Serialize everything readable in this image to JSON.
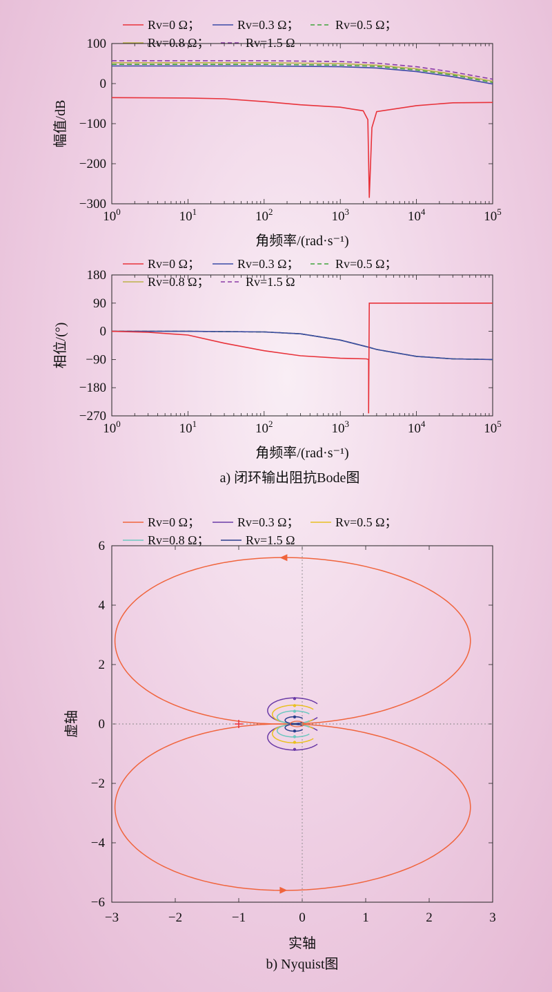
{
  "colors": {
    "rv0": "#e8323a",
    "rv03": "#3a4aa6",
    "rv05": "#3fa33a",
    "rv08": "#bdb24a",
    "rv15": "#8a3aa6",
    "nq0": "#f0643c",
    "nq03": "#6a3aa6",
    "nq05": "#e8c020",
    "nq08": "#6cc8c0",
    "nq15": "#283c8c"
  },
  "captions": {
    "a": "a) 闭环输出阻抗Bode图",
    "b": "b) Nyquist图"
  },
  "chart_data": [
    {
      "type": "line",
      "id": "magnitude",
      "xscale": "log",
      "xlim": [
        1,
        100000
      ],
      "ylim": [
        -300,
        100
      ],
      "xlabel": "角频率/(rad·s⁻¹)",
      "ylabel": "幅值/dB",
      "xticks": [
        1,
        10,
        100,
        1000,
        10000,
        100000
      ],
      "yticks": [
        100,
        0,
        -100,
        -200,
        -300
      ],
      "ytick_labels": [
        "100",
        "0",
        "−100",
        "−200",
        "−300"
      ],
      "legend": {
        "placement": "top",
        "entries": [
          "Rv=0 Ω；",
          "Rv=0.3 Ω；",
          "Rv=0.5 Ω；",
          "Rv=0.8 Ω；",
          "Rv=1.5 Ω"
        ]
      },
      "series": [
        {
          "name": "Rv=0 Ω",
          "x": [
            1,
            10,
            30,
            100,
            300,
            1000,
            2000,
            2300,
            2400,
            2600,
            3000,
            10000,
            30000,
            100000
          ],
          "y": [
            -35,
            -36,
            -38,
            -45,
            -53,
            -59,
            -68,
            -90,
            -285,
            -110,
            -70,
            -55,
            -48,
            -47
          ]
        },
        {
          "name": "Rv=0.3 Ω",
          "x": [
            1,
            10,
            100,
            1000,
            3000,
            10000,
            30000,
            100000
          ],
          "y": [
            44,
            44,
            44,
            42,
            39,
            30,
            17,
            -1
          ]
        },
        {
          "name": "Rv=0.5 Ω",
          "x": [
            1,
            10,
            100,
            1000,
            3000,
            10000,
            30000,
            100000
          ],
          "y": [
            48,
            48,
            48,
            46,
            43,
            34,
            21,
            3
          ]
        },
        {
          "name": "Rv=0.8 Ω",
          "x": [
            1,
            10,
            100,
            1000,
            3000,
            10000,
            30000,
            100000
          ],
          "y": [
            52,
            52,
            52,
            50,
            46,
            37,
            24,
            6
          ]
        },
        {
          "name": "Rv=1.5 Ω",
          "x": [
            1,
            10,
            100,
            1000,
            3000,
            10000,
            30000,
            100000
          ],
          "y": [
            57,
            57,
            57,
            55,
            51,
            42,
            29,
            11
          ]
        }
      ]
    },
    {
      "type": "line",
      "id": "phase",
      "xscale": "log",
      "xlim": [
        1,
        100000
      ],
      "ylim": [
        -270,
        180
      ],
      "xlabel": "角频率/(rad·s⁻¹)",
      "ylabel": "相位/(°)",
      "xticks": [
        1,
        10,
        100,
        1000,
        10000,
        100000
      ],
      "yticks": [
        180,
        90,
        0,
        -90,
        -180,
        -270
      ],
      "ytick_labels": [
        "180",
        "90",
        "0",
        "−90",
        "−180",
        "−270"
      ],
      "legend": {
        "placement": "top",
        "entries": [
          "Rv=0 Ω；",
          "Rv=0.3 Ω；",
          "Rv=0.5 Ω；",
          "Rv=0.8 Ω；",
          "Rv=1.5 Ω"
        ]
      },
      "series": [
        {
          "name": "Rv=0 Ω",
          "x": [
            1,
            3,
            10,
            30,
            100,
            300,
            1000,
            2200,
            2350,
            2350,
            2400,
            10000,
            100000
          ],
          "y": [
            0,
            -3,
            -12,
            -38,
            -62,
            -78,
            -86,
            -88,
            -90,
            -262,
            90,
            90,
            90
          ]
        },
        {
          "name": "Rv=0.3 Ω",
          "x": [
            1,
            10,
            100,
            300,
            1000,
            2300,
            3000,
            10000,
            30000,
            100000
          ],
          "y": [
            0,
            0,
            -2,
            -8,
            -28,
            -50,
            -58,
            -80,
            -88,
            -90
          ]
        },
        {
          "name": "Rv=0.5 Ω",
          "x": [
            1,
            10,
            100,
            300,
            1000,
            2300,
            3000,
            10000,
            30000,
            100000
          ],
          "y": [
            0,
            0,
            -2,
            -8,
            -28,
            -50,
            -58,
            -80,
            -88,
            -90
          ]
        },
        {
          "name": "Rv=0.8 Ω",
          "x": [
            1,
            10,
            100,
            300,
            1000,
            2300,
            3000,
            10000,
            30000,
            100000
          ],
          "y": [
            0,
            0,
            -2,
            -8,
            -28,
            -50,
            -58,
            -80,
            -88,
            -90
          ]
        },
        {
          "name": "Rv=1.5 Ω",
          "x": [
            1,
            10,
            100,
            300,
            1000,
            2300,
            3000,
            10000,
            30000,
            100000
          ],
          "y": [
            0,
            0,
            -2,
            -8,
            -28,
            -50,
            -58,
            -80,
            -88,
            -90
          ]
        }
      ]
    },
    {
      "type": "line",
      "id": "nyquist",
      "xlim": [
        -3,
        3
      ],
      "ylim": [
        -6,
        6
      ],
      "xlabel": "实轴",
      "ylabel": "虚轴",
      "xticks": [
        -3,
        -2,
        -1,
        0,
        1,
        2,
        3
      ],
      "xtick_labels": [
        "−3",
        "−2",
        "−1",
        "0",
        "1",
        "2",
        "3"
      ],
      "yticks": [
        6,
        4,
        2,
        0,
        -2,
        -4,
        -6
      ],
      "ytick_labels": [
        "6",
        "4",
        "2",
        "0",
        "−2",
        "−4",
        "−6"
      ],
      "critical_point": [
        -1,
        0
      ],
      "legend": {
        "placement": "top",
        "entries": [
          "Rv=0 Ω；",
          "Rv=0.3 Ω；",
          "Rv=0.5 Ω；",
          "Rv=0.8 Ω；",
          "Rv=1.5 Ω"
        ]
      },
      "series": [
        {
          "name": "Rv=0 Ω",
          "shape": "figure-eight lobes",
          "x_range": [
            -3.0,
            2.7
          ],
          "y_range": [
            -5.6,
            5.6
          ]
        },
        {
          "name": "Rv=0.3 Ω",
          "shape": "closed contour",
          "x_range": [
            -0.55,
            0.3
          ],
          "y_range": [
            -0.9,
            0.9
          ]
        },
        {
          "name": "Rv=0.5 Ω",
          "shape": "closed contour",
          "x_range": [
            -0.45,
            0.25
          ],
          "y_range": [
            -0.65,
            0.65
          ]
        },
        {
          "name": "Rv=0.8 Ω",
          "shape": "closed contour",
          "x_range": [
            -0.35,
            0.2
          ],
          "y_range": [
            -0.45,
            0.45
          ]
        },
        {
          "name": "Rv=1.5 Ω",
          "shape": "closed contour",
          "x_range": [
            -0.25,
            0.05
          ],
          "y_range": [
            -0.25,
            0.25
          ]
        }
      ]
    }
  ]
}
